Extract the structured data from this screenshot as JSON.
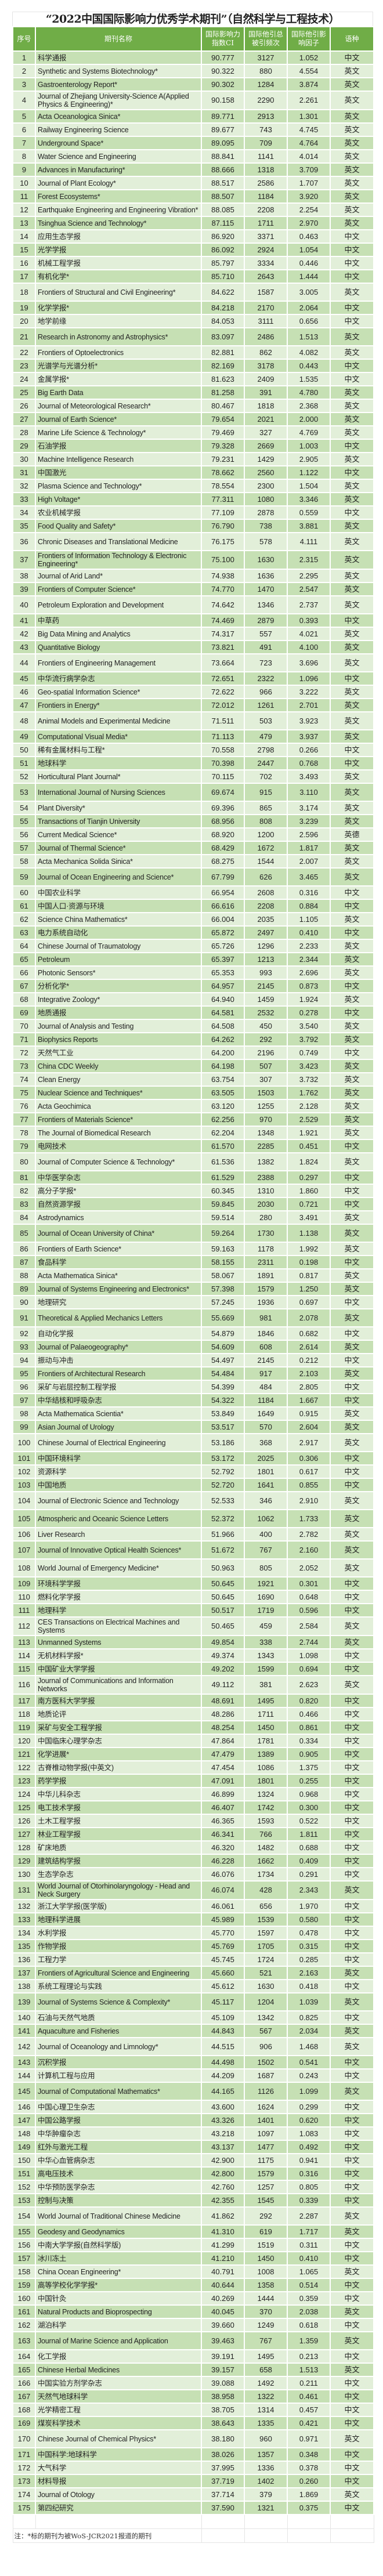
{
  "title": "“2022中国国际影响力优秀学术期刊”（自然科学与工程技术）",
  "colors": {
    "header": "#70ad47",
    "row_odd": "#c6e0b4",
    "row_even": "#e2efd9"
  },
  "columns": [
    "序号",
    "期刊名称",
    "国际影响力指数CI",
    "国际他引总被引频次",
    "国际他引影响因子",
    "语种"
  ],
  "rows": [
    [
      "1",
      "科学通报",
      "90.777",
      "3127",
      "1.052",
      "中文"
    ],
    [
      "2",
      "Synthetic and Systems Biotechnology*",
      "90.322",
      "880",
      "4.554",
      "英文"
    ],
    [
      "3",
      "Gastroenterology Report*",
      "90.302",
      "1284",
      "3.874",
      "英文"
    ],
    [
      "4",
      "Journal of Zhejiang University-Science A(Applied Physics & Engineering)*",
      "90.158",
      "2290",
      "2.261",
      "英文"
    ],
    [
      "5",
      "Acta Oceanologica Sinica*",
      "89.771",
      "2913",
      "1.301",
      "英文"
    ],
    [
      "6",
      "Railway Engineering Science",
      "89.677",
      "743",
      "4.745",
      "英文"
    ],
    [
      "7",
      "Underground Space*",
      "89.095",
      "709",
      "4.764",
      "英文"
    ],
    [
      "8",
      "Water Science and Engineering",
      "88.841",
      "1141",
      "4.014",
      "英文"
    ],
    [
      "9",
      "Advances in Manufacturing*",
      "88.666",
      "1318",
      "3.709",
      "英文"
    ],
    [
      "10",
      "Journal of Plant Ecology*",
      "88.517",
      "2586",
      "1.707",
      "英文"
    ],
    [
      "11",
      "Forest Ecosystems*",
      "88.507",
      "1184",
      "3.920",
      "英文"
    ],
    [
      "12",
      "Earthquake Engineering and Engineering Vibration*",
      "88.085",
      "2208",
      "2.254",
      "英文"
    ],
    [
      "13",
      "Tsinghua Science and Technology*",
      "87.115",
      "1711",
      "2.970",
      "英文"
    ],
    [
      "14",
      "应用生态学报",
      "86.920",
      "3371",
      "0.463",
      "中文"
    ],
    [
      "15",
      "光学学报",
      "86.092",
      "2924",
      "1.054",
      "中文"
    ],
    [
      "16",
      "机械工程学报",
      "85.797",
      "3334",
      "0.446",
      "中文"
    ],
    [
      "17",
      "有机化学*",
      "85.710",
      "2643",
      "1.444",
      "中文"
    ],
    [
      "18",
      "Frontiers of Structural and Civil Engineering*",
      "84.622",
      "1587",
      "3.005",
      "英文"
    ],
    [
      "19",
      "化学学报*",
      "84.218",
      "2170",
      "2.064",
      "中文"
    ],
    [
      "20",
      "地学前缘",
      "84.053",
      "3111",
      "0.656",
      "中文"
    ],
    [
      "21",
      "Research in Astronomy and Astrophysics*",
      "83.097",
      "2486",
      "1.513",
      "英文"
    ],
    [
      "22",
      "Frontiers of Optoelectronics",
      "82.881",
      "862",
      "4.082",
      "英文"
    ],
    [
      "23",
      "光谱学与光谱分析*",
      "82.169",
      "3178",
      "0.443",
      "中文"
    ],
    [
      "24",
      "金属学报*",
      "81.623",
      "2409",
      "1.535",
      "中文"
    ],
    [
      "25",
      "Big Earth Data",
      "81.258",
      "391",
      "4.780",
      "英文"
    ],
    [
      "26",
      "Journal of Meteorological Research*",
      "80.467",
      "1818",
      "2.368",
      "英文"
    ],
    [
      "27",
      "Journal of Earth Science*",
      "79.654",
      "2021",
      "2.000",
      "英文"
    ],
    [
      "28",
      "Marine Life Science & Technology*",
      "79.469",
      "327",
      "4.769",
      "英文"
    ],
    [
      "29",
      "石油学报",
      "79.328",
      "2669",
      "1.003",
      "中文"
    ],
    [
      "30",
      "Machine Intelligence Research",
      "79.231",
      "1429",
      "2.905",
      "英文"
    ],
    [
      "31",
      "中国激光",
      "78.662",
      "2560",
      "1.122",
      "中文"
    ],
    [
      "32",
      "Plasma Science and Technology*",
      "78.554",
      "2300",
      "1.504",
      "英文"
    ],
    [
      "33",
      "High Voltage*",
      "77.311",
      "1080",
      "3.346",
      "英文"
    ],
    [
      "34",
      "农业机械学报",
      "77.109",
      "2878",
      "0.559",
      "中文"
    ],
    [
      "35",
      "Food Quality and Safety*",
      "76.790",
      "738",
      "3.881",
      "英文"
    ],
    [
      "36",
      "Chronic Diseases and Translational Medicine",
      "76.175",
      "578",
      "4.111",
      "英文"
    ],
    [
      "37",
      "Frontiers of Information Technology & Electronic Engineering*",
      "75.100",
      "1630",
      "2.315",
      "英文"
    ],
    [
      "38",
      "Journal of Arid Land*",
      "74.938",
      "1636",
      "2.295",
      "英文"
    ],
    [
      "39",
      "Frontiers of Computer Science*",
      "74.770",
      "1470",
      "2.547",
      "英文"
    ],
    [
      "40",
      "Petroleum Exploration and Development",
      "74.642",
      "1346",
      "2.737",
      "英文"
    ],
    [
      "41",
      "中草药",
      "74.469",
      "2879",
      "0.393",
      "中文"
    ],
    [
      "42",
      "Big Data Mining and Analytics",
      "74.317",
      "557",
      "4.021",
      "英文"
    ],
    [
      "43",
      "Quantitative Biology",
      "73.821",
      "491",
      "4.100",
      "英文"
    ],
    [
      "44",
      "Frontiers of Engineering Management",
      "73.664",
      "723",
      "3.696",
      "英文"
    ],
    [
      "45",
      "中华流行病学杂志",
      "72.651",
      "2322",
      "1.096",
      "中文"
    ],
    [
      "46",
      "Geo-spatial Information Science*",
      "72.622",
      "966",
      "3.222",
      "英文"
    ],
    [
      "47",
      "Frontiers in Energy*",
      "72.012",
      "1261",
      "2.701",
      "英文"
    ],
    [
      "48",
      "Animal Models and Experimental Medicine",
      "71.511",
      "503",
      "3.923",
      "英文"
    ],
    [
      "49",
      "Computational Visual Media*",
      "71.113",
      "479",
      "3.937",
      "英文"
    ],
    [
      "50",
      "稀有金属材料与工程*",
      "70.558",
      "2798",
      "0.266",
      "中文"
    ],
    [
      "51",
      "地球科学",
      "70.398",
      "2447",
      "0.768",
      "中文"
    ],
    [
      "52",
      "Horticultural Plant Journal*",
      "70.115",
      "702",
      "3.493",
      "英文"
    ],
    [
      "53",
      "International Journal of Nursing Sciences",
      "69.674",
      "915",
      "3.110",
      "英文"
    ],
    [
      "54",
      "Plant Diversity*",
      "69.396",
      "865",
      "3.174",
      "英文"
    ],
    [
      "55",
      "Transactions of Tianjin University",
      "68.956",
      "808",
      "3.239",
      "英文"
    ],
    [
      "56",
      "Current Medical Science*",
      "68.920",
      "1200",
      "2.596",
      "英德"
    ],
    [
      "57",
      "Journal of Thermal Science*",
      "68.429",
      "1672",
      "1.817",
      "英文"
    ],
    [
      "58",
      "Acta Mechanica Solida Sinica*",
      "68.275",
      "1544",
      "2.007",
      "英文"
    ],
    [
      "59",
      "Journal of Ocean Engineering and Science*",
      "67.799",
      "626",
      "3.465",
      "英文"
    ],
    [
      "60",
      "中国农业科学",
      "66.954",
      "2608",
      "0.316",
      "中文"
    ],
    [
      "61",
      "中国人口·资源与环境",
      "66.616",
      "2208",
      "0.884",
      "中文"
    ],
    [
      "62",
      "Science China Mathematics*",
      "66.004",
      "2035",
      "1.105",
      "英文"
    ],
    [
      "63",
      "电力系统自动化",
      "65.872",
      "2497",
      "0.410",
      "中文"
    ],
    [
      "64",
      "Chinese Journal of Traumatology",
      "65.726",
      "1296",
      "2.233",
      "英文"
    ],
    [
      "65",
      "Petroleum",
      "65.397",
      "1213",
      "2.344",
      "英文"
    ],
    [
      "66",
      "Photonic Sensors*",
      "65.353",
      "993",
      "2.696",
      "英文"
    ],
    [
      "67",
      "分析化学*",
      "64.957",
      "2145",
      "0.873",
      "中文"
    ],
    [
      "68",
      "Integrative Zoology*",
      "64.940",
      "1459",
      "1.924",
      "英文"
    ],
    [
      "69",
      "地质通报",
      "64.581",
      "2532",
      "0.278",
      "中文"
    ],
    [
      "70",
      "Journal of Analysis and Testing",
      "64.508",
      "450",
      "3.540",
      "英文"
    ],
    [
      "71",
      "Biophysics Reports",
      "64.262",
      "292",
      "3.792",
      "英文"
    ],
    [
      "72",
      "天然气工业",
      "64.200",
      "2196",
      "0.749",
      "中文"
    ],
    [
      "73",
      "China CDC Weekly",
      "64.198",
      "507",
      "3.423",
      "英文"
    ],
    [
      "74",
      "Clean Energy",
      "63.754",
      "307",
      "3.732",
      "英文"
    ],
    [
      "75",
      "Nuclear Science and Techniques*",
      "63.505",
      "1503",
      "1.762",
      "英文"
    ],
    [
      "76",
      "Acta Geochimica",
      "63.120",
      "1255",
      "2.128",
      "英文"
    ],
    [
      "77",
      "Frontiers of Materials Science*",
      "62.256",
      "970",
      "2.529",
      "英文"
    ],
    [
      "78",
      "The Journal of Biomedical Research",
      "62.204",
      "1348",
      "1.921",
      "英文"
    ],
    [
      "79",
      "电网技术",
      "61.570",
      "2285",
      "0.451",
      "中文"
    ],
    [
      "80",
      "Journal of Computer Science & Technology*",
      "61.536",
      "1382",
      "1.824",
      "英文"
    ],
    [
      "81",
      "中华医学杂志",
      "61.529",
      "2388",
      "0.297",
      "中文"
    ],
    [
      "82",
      "高分子学报*",
      "60.345",
      "1310",
      "1.860",
      "中文"
    ],
    [
      "83",
      "自然资源学报",
      "59.845",
      "2030",
      "0.721",
      "中文"
    ],
    [
      "84",
      "Astrodynamics",
      "59.514",
      "280",
      "3.491",
      "英文"
    ],
    [
      "85",
      "Journal of Ocean University of China*",
      "59.264",
      "1730",
      "1.138",
      "英文"
    ],
    [
      "86",
      "Frontiers of Earth Science*",
      "59.163",
      "1178",
      "1.992",
      "英文"
    ],
    [
      "87",
      "食品科学",
      "58.155",
      "2311",
      "0.198",
      "中文"
    ],
    [
      "88",
      "Acta Mathematica Sinica*",
      "58.067",
      "1891",
      "0.817",
      "英文"
    ],
    [
      "89",
      "Journal of Systems Engineering and Electronics*",
      "57.398",
      "1579",
      "1.250",
      "英文"
    ],
    [
      "90",
      "地理研究",
      "57.245",
      "1936",
      "0.697",
      "中文"
    ],
    [
      "91",
      "Theoretical & Applied Mechanics Letters",
      "55.669",
      "981",
      "2.078",
      "英文"
    ],
    [
      "92",
      "自动化学报",
      "54.879",
      "1846",
      "0.682",
      "中文"
    ],
    [
      "93",
      "Journal of Palaeogeography*",
      "54.609",
      "608",
      "2.614",
      "英文"
    ],
    [
      "94",
      "振动与冲击",
      "54.497",
      "2145",
      "0.212",
      "中文"
    ],
    [
      "95",
      "Frontiers of Architectural Research",
      "54.484",
      "917",
      "2.103",
      "英文"
    ],
    [
      "96",
      "采矿与岩层控制工程学报",
      "54.399",
      "484",
      "2.805",
      "中文"
    ],
    [
      "97",
      "中华结核和呼吸杂志",
      "54.322",
      "1184",
      "1.667",
      "中文"
    ],
    [
      "98",
      "Acta Mathematica Scientia*",
      "53.849",
      "1649",
      "0.915",
      "英文"
    ],
    [
      "99",
      "Asian Journal of Urology",
      "53.517",
      "570",
      "2.604",
      "英文"
    ],
    [
      "100",
      "Chinese Journal of Electrical Engineering",
      "53.186",
      "368",
      "2.917",
      "英文"
    ],
    [
      "101",
      "中国环境科学",
      "53.172",
      "2025",
      "0.306",
      "中文"
    ],
    [
      "102",
      "资源科学",
      "52.792",
      "1801",
      "0.617",
      "中文"
    ],
    [
      "103",
      "中国地质",
      "52.720",
      "1641",
      "0.855",
      "中文"
    ],
    [
      "104",
      "Journal of Electronic Science and Technology",
      "52.533",
      "346",
      "2.910",
      "英文"
    ],
    [
      "105",
      "Atmospheric and Oceanic Science Letters",
      "52.372",
      "1062",
      "1.733",
      "英文"
    ],
    [
      "106",
      "Liver Research",
      "51.966",
      "400",
      "2.782",
      "英文"
    ],
    [
      "107",
      "Journal of Innovative Optical Health Sciences*",
      "51.672",
      "767",
      "2.160",
      "英文"
    ],
    [
      "108",
      "World Journal of Emergency Medicine*",
      "50.963",
      "805",
      "2.052",
      "英文"
    ],
    [
      "109",
      "环境科学学报",
      "50.645",
      "1921",
      "0.301",
      "中文"
    ],
    [
      "110",
      "燃料化学学报",
      "50.645",
      "1690",
      "0.648",
      "中文"
    ],
    [
      "111",
      "地理科学",
      "50.517",
      "1719",
      "0.596",
      "中文"
    ],
    [
      "112",
      "CES Transactions on Electrical Machines and Systems",
      "50.465",
      "459",
      "2.584",
      "英文"
    ],
    [
      "113",
      "Unmanned Systems",
      "49.854",
      "338",
      "2.744",
      "英文"
    ],
    [
      "114",
      "无机材料学报*",
      "49.374",
      "1343",
      "1.098",
      "中文"
    ],
    [
      "115",
      "中国矿业大学学报",
      "49.202",
      "1599",
      "0.694",
      "中文"
    ],
    [
      "116",
      "Journal of Communications and Information Networks",
      "49.112",
      "381",
      "2.623",
      "英文"
    ],
    [
      "117",
      "南方医科大学学报",
      "48.691",
      "1495",
      "0.820",
      "中文"
    ],
    [
      "118",
      "地质论评",
      "48.286",
      "1711",
      "0.466",
      "中文"
    ],
    [
      "119",
      "采矿与安全工程学报",
      "48.254",
      "1450",
      "0.861",
      "中文"
    ],
    [
      "120",
      "中国临床心理学杂志",
      "47.864",
      "1781",
      "0.334",
      "中文"
    ],
    [
      "121",
      "化学进展*",
      "47.479",
      "1389",
      "0.905",
      "中文"
    ],
    [
      "122",
      "古脊椎动物学报(中英文)",
      "47.454",
      "1086",
      "1.375",
      "中文"
    ],
    [
      "123",
      "药学学报",
      "47.091",
      "1801",
      "0.255",
      "中文"
    ],
    [
      "124",
      "中华儿科杂志",
      "46.899",
      "1324",
      "0.968",
      "中文"
    ],
    [
      "125",
      "电工技术学报",
      "46.407",
      "1742",
      "0.300",
      "中文"
    ],
    [
      "126",
      "土木工程学报",
      "46.365",
      "1593",
      "0.522",
      "中文"
    ],
    [
      "127",
      "林业工程学报",
      "46.341",
      "766",
      "1.811",
      "中文"
    ],
    [
      "128",
      "矿床地质",
      "46.320",
      "1482",
      "0.688",
      "中文"
    ],
    [
      "129",
      "建筑结构学报",
      "46.228",
      "1662",
      "0.409",
      "中文"
    ],
    [
      "130",
      "生态学杂志",
      "46.076",
      "1734",
      "0.291",
      "中文"
    ],
    [
      "131",
      "World Journal of Otorhinolaryngology - Head and Neck Surgery",
      "46.074",
      "428",
      "2.343",
      "英文"
    ],
    [
      "132",
      "浙江大学学报(医学版)",
      "46.061",
      "656",
      "1.970",
      "中文"
    ],
    [
      "133",
      "地理科学进展",
      "45.989",
      "1539",
      "0.580",
      "中文"
    ],
    [
      "134",
      "水利学报",
      "45.770",
      "1597",
      "0.478",
      "中文"
    ],
    [
      "135",
      "作物学报",
      "45.769",
      "1705",
      "0.315",
      "中文"
    ],
    [
      "136",
      "工程力学",
      "45.745",
      "1724",
      "0.285",
      "中文"
    ],
    [
      "137",
      "Frontiers of Agricultural Science and Engineering",
      "45.660",
      "521",
      "2.163",
      "英文"
    ],
    [
      "138",
      "系统工程理论与实践",
      "45.612",
      "1630",
      "0.418",
      "中文"
    ],
    [
      "139",
      "Journal of Systems Science & Complexity*",
      "45.117",
      "1204",
      "1.039",
      "英文"
    ],
    [
      "140",
      "石油与天然气地质",
      "45.109",
      "1342",
      "0.825",
      "中文"
    ],
    [
      "141",
      "Aquaculture and Fisheries",
      "44.843",
      "567",
      "2.034",
      "英文"
    ],
    [
      "142",
      "Journal of Oceanology and Limnology*",
      "44.515",
      "906",
      "1.468",
      "英文"
    ],
    [
      "143",
      "沉积学报",
      "44.498",
      "1502",
      "0.541",
      "中文"
    ],
    [
      "144",
      "计算机工程与应用",
      "44.209",
      "1687",
      "0.243",
      "中文"
    ],
    [
      "145",
      "Journal of Computational Mathematics*",
      "44.165",
      "1126",
      "1.099",
      "英文"
    ],
    [
      "146",
      "中国心理卫生杂志",
      "43.600",
      "1624",
      "0.299",
      "中文"
    ],
    [
      "147",
      "中国公路学报",
      "43.326",
      "1401",
      "0.620",
      "中文"
    ],
    [
      "148",
      "中华肿瘤杂志",
      "43.218",
      "1097",
      "1.083",
      "中文"
    ],
    [
      "149",
      "红外与激光工程",
      "43.137",
      "1477",
      "0.492",
      "中文"
    ],
    [
      "150",
      "中华心血管病杂志",
      "42.900",
      "1175",
      "0.941",
      "中文"
    ],
    [
      "151",
      "高电压技术",
      "42.800",
      "1579",
      "0.316",
      "中文"
    ],
    [
      "152",
      "中华预防医学杂志",
      "42.760",
      "1257",
      "0.805",
      "中文"
    ],
    [
      "153",
      "控制与决策",
      "42.355",
      "1545",
      "0.339",
      "中文"
    ],
    [
      "154",
      "World Journal of Traditional Chinese Medicine",
      "41.862",
      "292",
      "2.287",
      "英文"
    ],
    [
      "155",
      "Geodesy and Geodynamics",
      "41.310",
      "619",
      "1.717",
      "英文"
    ],
    [
      "156",
      "中南大学学报(自然科学版)",
      "41.299",
      "1519",
      "0.311",
      "中文"
    ],
    [
      "157",
      "冰川冻土",
      "41.210",
      "1450",
      "0.410",
      "中文"
    ],
    [
      "158",
      "China Ocean Engineering*",
      "40.791",
      "1008",
      "1.065",
      "英文"
    ],
    [
      "159",
      "高等学校化学学报*",
      "40.644",
      "1358",
      "0.514",
      "中文"
    ],
    [
      "160",
      "中国针灸",
      "40.269",
      "1444",
      "0.359",
      "中文"
    ],
    [
      "161",
      "Natural Products and Bioprospecting",
      "40.045",
      "370",
      "2.038",
      "英文"
    ],
    [
      "162",
      "湖泊科学",
      "39.660",
      "1249",
      "0.618",
      "中文"
    ],
    [
      "163",
      "Journal of Marine Science and Application",
      "39.463",
      "767",
      "1.359",
      "英文"
    ],
    [
      "164",
      "化工学报",
      "39.191",
      "1495",
      "0.213",
      "中文"
    ],
    [
      "165",
      "Chinese Herbal Medicines",
      "39.157",
      "658",
      "1.513",
      "英文"
    ],
    [
      "166",
      "中国实验方剂学杂志",
      "39.088",
      "1492",
      "0.211",
      "中文"
    ],
    [
      "167",
      "天然气地球科学",
      "38.958",
      "1322",
      "0.461",
      "中文"
    ],
    [
      "168",
      "光学精密工程",
      "38.705",
      "1314",
      "0.457",
      "中文"
    ],
    [
      "169",
      "煤炭科学技术",
      "38.643",
      "1335",
      "0.421",
      "中文"
    ],
    [
      "170",
      "Chinese Journal of Chemical Physics*",
      "38.180",
      "960",
      "0.971",
      "英文"
    ],
    [
      "171",
      "中国科学:地球科学",
      "38.026",
      "1357",
      "0.348",
      "中文"
    ],
    [
      "172",
      "大气科学",
      "37.995",
      "1336",
      "0.378",
      "中文"
    ],
    [
      "173",
      "材料导报",
      "37.719",
      "1402",
      "0.260",
      "中文"
    ],
    [
      "174",
      "Journal of Otology",
      "37.714",
      "379",
      "1.869",
      "英文"
    ],
    [
      "175",
      "第四纪研究",
      "37.590",
      "1321",
      "0.375",
      "中文"
    ]
  ],
  "note": "注：*标的期刊为被WoS-JCR2021报道的期刊"
}
